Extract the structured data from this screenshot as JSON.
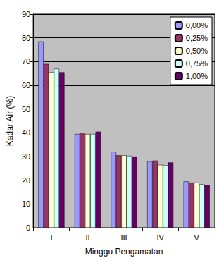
{
  "chart_data": {
    "type": "bar",
    "x_label": "Minggu Pengamatan",
    "y_label": "Kadar Air (%)",
    "categories": [
      "I",
      "II",
      "III",
      "IV",
      "V"
    ],
    "series": [
      {
        "name": "0,00%",
        "color": "#9999ff",
        "values": [
          78.5,
          39.5,
          32,
          28,
          19.5
        ]
      },
      {
        "name": "0,25%",
        "color": "#993366",
        "values": [
          69,
          40,
          30.5,
          28.3,
          19
        ]
      },
      {
        "name": "0,50%",
        "color": "#ffffcc",
        "values": [
          65.5,
          39.5,
          30.5,
          26.5,
          19
        ]
      },
      {
        "name": "0,75%",
        "color": "#ccffff",
        "values": [
          67,
          39.5,
          30.3,
          26.3,
          18.3
        ]
      },
      {
        "name": "1,00%",
        "color": "#660066",
        "values": [
          65.5,
          40.5,
          30,
          27.5,
          18
        ]
      }
    ],
    "ylim": [
      0,
      90
    ],
    "yticks": [
      0,
      10,
      20,
      30,
      40,
      50,
      60,
      70,
      80,
      90
    ],
    "grid": true,
    "legend": "upper right"
  }
}
